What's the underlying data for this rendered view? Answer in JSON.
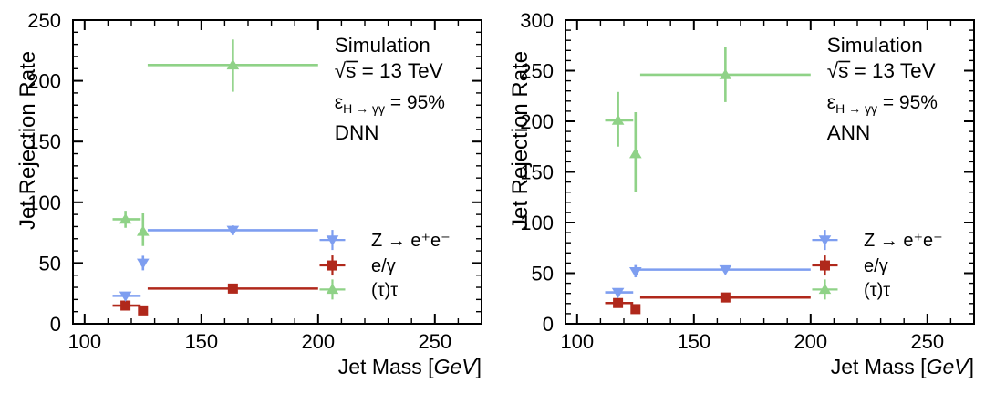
{
  "figure": {
    "background": "#ffffff",
    "axis_color": "#000000",
    "xlabel_prefix": "Jet Mass [",
    "xlabel_unit": "GeV",
    "xlabel_suffix": "]",
    "ylabel": "Jet Rejection Rate"
  },
  "chart_data": [
    {
      "type": "scatter",
      "panel_id": "dnn",
      "title": "",
      "xlabel": "Jet Mass [GeV]",
      "ylabel": "Jet Rejection Rate",
      "xlim": [
        95,
        270
      ],
      "ylim": [
        0,
        250
      ],
      "xticks": [
        100,
        150,
        200,
        250
      ],
      "yticks": [
        0,
        50,
        100,
        150,
        200,
        250
      ],
      "minor_step_x": 10,
      "minor_step_y": 10,
      "grid": false,
      "legend_position": "middle-right",
      "annotations": {
        "line1": "Simulation",
        "sqrt_s": "√s",
        "energy": " = 13 TeV",
        "eff_symbol": "ε",
        "eff_sub": "H → γγ",
        "eff_value": " = 95%",
        "model": "DNN"
      },
      "series": [
        {
          "name": "Z → e⁺e⁻",
          "marker": "triangle-down",
          "color": "#7E9EF0",
          "points": [
            {
              "x": 117.5,
              "y": 23,
              "xlo": 112,
              "xhi": 124,
              "ylo": 20.5,
              "yhi": 25.5
            },
            {
              "x": 125,
              "y": 50,
              "ylo": 44,
              "yhi": 56
            },
            {
              "x": 163.5,
              "y": 77,
              "xlo": 127,
              "xhi": 200,
              "ylo": 73,
              "yhi": 81
            }
          ]
        },
        {
          "name": "e/γ",
          "marker": "square",
          "color": "#B0281B",
          "points": [
            {
              "x": 117.5,
              "y": 15,
              "xlo": 112,
              "xhi": 124,
              "ylo": 13.5,
              "yhi": 16.5
            },
            {
              "x": 125,
              "y": 11
            },
            {
              "x": 163.5,
              "y": 29,
              "xlo": 127,
              "xhi": 200,
              "ylo": 27,
              "yhi": 31
            }
          ]
        },
        {
          "name": "(τ)τ",
          "marker": "triangle-up",
          "color": "#8FD287",
          "points": [
            {
              "x": 117.5,
              "y": 86,
              "xlo": 112,
              "xhi": 124,
              "ylo": 79,
              "yhi": 93
            },
            {
              "x": 125,
              "y": 76,
              "ylo": 64,
              "yhi": 91
            },
            {
              "x": 163.5,
              "y": 213,
              "xlo": 127,
              "xhi": 200,
              "ylo": 191,
              "yhi": 234
            }
          ]
        }
      ]
    },
    {
      "type": "scatter",
      "panel_id": "ann",
      "title": "",
      "xlabel": "Jet Mass [GeV]",
      "ylabel": "Jet Rejection Rate",
      "xlim": [
        95,
        270
      ],
      "ylim": [
        0,
        300
      ],
      "xticks": [
        100,
        150,
        200,
        250
      ],
      "yticks": [
        0,
        50,
        100,
        150,
        200,
        250,
        300
      ],
      "minor_step_x": 10,
      "minor_step_y": 10,
      "grid": false,
      "legend_position": "middle-right",
      "annotations": {
        "line1": "Simulation",
        "sqrt_s": "√s",
        "energy": " = 13 TeV",
        "eff_symbol": "ε",
        "eff_sub": "H → γγ",
        "eff_value": " = 95%",
        "model": "ANN"
      },
      "series": [
        {
          "name": "Z → e⁺e⁻",
          "marker": "triangle-down",
          "color": "#7E9EF0",
          "points": [
            {
              "x": 117.5,
              "y": 31,
              "xlo": 112,
              "xhi": 124,
              "ylo": 29,
              "yhi": 33
            },
            {
              "x": 125,
              "y": 51.5,
              "ylo": 46,
              "yhi": 58
            },
            {
              "x": 163.5,
              "y": 53.5,
              "xlo": 126,
              "xhi": 200,
              "ylo": 50.5,
              "yhi": 56.5
            }
          ]
        },
        {
          "name": "e/γ",
          "marker": "square",
          "color": "#B0281B",
          "points": [
            {
              "x": 117.5,
              "y": 20.5,
              "xlo": 112,
              "xhi": 124,
              "ylo": 18.5,
              "yhi": 22.5
            },
            {
              "x": 125,
              "y": 14.5
            },
            {
              "x": 163.5,
              "y": 26,
              "xlo": 127,
              "xhi": 200,
              "ylo": 24,
              "yhi": 28
            }
          ]
        },
        {
          "name": "(τ)τ",
          "marker": "triangle-up",
          "color": "#8FD287",
          "points": [
            {
              "x": 117.5,
              "y": 201,
              "xlo": 112,
              "xhi": 124,
              "ylo": 175,
              "yhi": 229
            },
            {
              "x": 125,
              "y": 168,
              "ylo": 130,
              "yhi": 209
            },
            {
              "x": 163.5,
              "y": 246,
              "xlo": 127,
              "xhi": 200,
              "ylo": 219,
              "yhi": 273
            }
          ]
        }
      ]
    }
  ]
}
